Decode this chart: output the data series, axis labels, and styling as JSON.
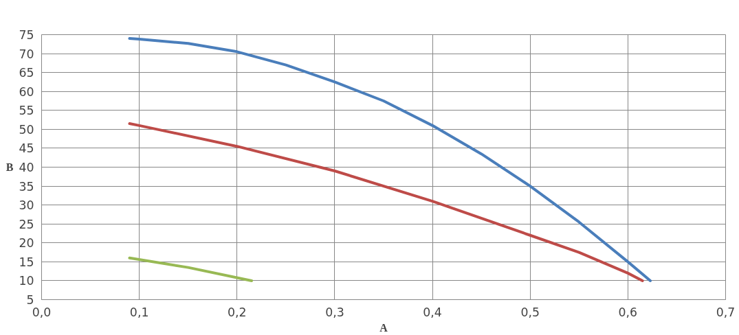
{
  "chart_data": {
    "type": "line",
    "xlabel": "A",
    "ylabel": "B",
    "xlim": [
      0,
      0.7
    ],
    "ylim": [
      5,
      75
    ],
    "xticks": [
      {
        "value": 0,
        "label": "0,0"
      },
      {
        "value": 0.1,
        "label": "0,1"
      },
      {
        "value": 0.2,
        "label": "0,2"
      },
      {
        "value": 0.3,
        "label": "0,3"
      },
      {
        "value": 0.4,
        "label": "0,4"
      },
      {
        "value": 0.5,
        "label": "0,5"
      },
      {
        "value": 0.6,
        "label": "0,6"
      },
      {
        "value": 0.7,
        "label": "0,7"
      }
    ],
    "yticks": [
      5,
      10,
      15,
      20,
      25,
      30,
      35,
      40,
      45,
      50,
      55,
      60,
      65,
      70,
      75
    ],
    "grid": true,
    "marker": "none",
    "line_style": "solid",
    "series": [
      {
        "color": "#4a7ebb",
        "x": [
          0.09,
          0.1,
          0.15,
          0.2,
          0.25,
          0.3,
          0.35,
          0.4,
          0.45,
          0.5,
          0.55,
          0.6,
          0.623
        ],
        "values": [
          74,
          73.8,
          72.7,
          70.5,
          67,
          62.5,
          57.5,
          51,
          43.5,
          35,
          25.5,
          15,
          10
        ]
      },
      {
        "color": "#be4b48",
        "x": [
          0.09,
          0.1,
          0.2,
          0.3,
          0.4,
          0.5,
          0.55,
          0.6,
          0.615
        ],
        "values": [
          51.5,
          51,
          45.5,
          39,
          31,
          22,
          17.5,
          12,
          10
        ]
      },
      {
        "color": "#98b954",
        "x": [
          0.09,
          0.15,
          0.215
        ],
        "values": [
          16,
          13.5,
          10
        ]
      }
    ]
  }
}
